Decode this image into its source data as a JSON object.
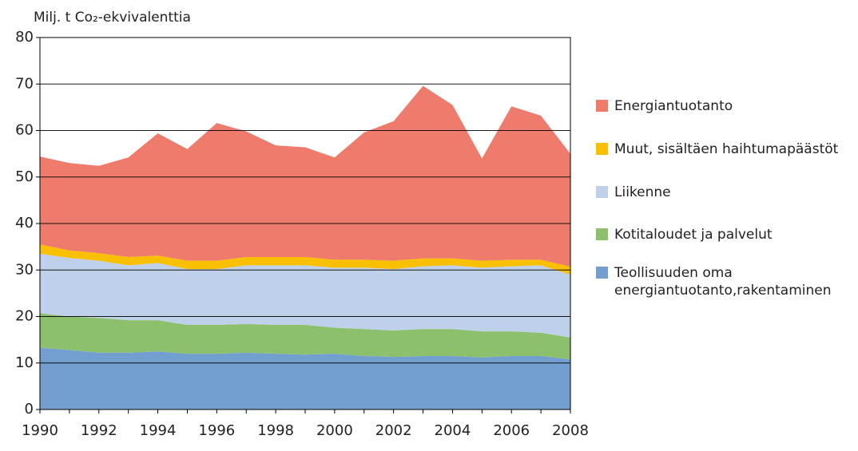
{
  "chart_data": {
    "type": "stacked_area",
    "y_axis_label": "Milj. t Co₂-ekvivalenttia",
    "x": [
      1990,
      1991,
      1992,
      1993,
      1994,
      1995,
      1996,
      1997,
      1998,
      1999,
      2000,
      2001,
      2002,
      2003,
      2004,
      2005,
      2006,
      2007,
      2008
    ],
    "xlim": [
      1990,
      2008
    ],
    "xticks": [
      1990,
      1992,
      1994,
      1996,
      1998,
      2000,
      2002,
      2004,
      2006,
      2008
    ],
    "ylim": [
      0,
      80
    ],
    "yticks": [
      0,
      10,
      20,
      30,
      40,
      50,
      60,
      70,
      80
    ],
    "grid": true,
    "legend": "right",
    "series": [
      {
        "name": "Teollisuuden oma energiantuotanto,rakentaminen",
        "color": "#729fcf",
        "values": [
          13.3,
          12.8,
          12.2,
          12.2,
          12.5,
          12.0,
          12.0,
          12.2,
          12.0,
          11.8,
          12.0,
          11.5,
          11.3,
          11.5,
          11.5,
          11.2,
          11.5,
          11.5,
          10.8
        ]
      },
      {
        "name": "Kotitaloudet ja palvelut",
        "color": "#8dc06c",
        "values": [
          7.4,
          7.2,
          7.5,
          7.0,
          6.7,
          6.2,
          6.2,
          6.2,
          6.2,
          6.4,
          5.6,
          5.8,
          5.7,
          5.8,
          5.8,
          5.6,
          5.3,
          5.0,
          4.7
        ]
      },
      {
        "name": "Liikenne",
        "color": "#bfd0ea",
        "values": [
          12.8,
          12.6,
          12.3,
          11.8,
          12.3,
          12.0,
          12.0,
          12.6,
          12.8,
          12.8,
          12.9,
          13.2,
          13.2,
          13.5,
          13.7,
          13.7,
          14.0,
          14.5,
          13.5
        ]
      },
      {
        "name": "Muut, sisältäen haihtumapäästöt",
        "color": "#f9c000",
        "values": [
          2.0,
          1.6,
          1.6,
          1.8,
          1.6,
          1.8,
          1.8,
          1.8,
          1.8,
          1.8,
          1.7,
          1.7,
          1.8,
          1.7,
          1.5,
          1.5,
          1.4,
          1.2,
          1.7
        ]
      },
      {
        "name": "Energiantuotanto",
        "color": "#ee7b6b",
        "values": [
          18.9,
          18.8,
          18.8,
          21.4,
          26.3,
          24.0,
          29.6,
          27.0,
          24.0,
          23.6,
          22.0,
          27.4,
          30.0,
          37.1,
          33.0,
          22.0,
          33.0,
          31.0,
          24.3
        ]
      }
    ]
  }
}
